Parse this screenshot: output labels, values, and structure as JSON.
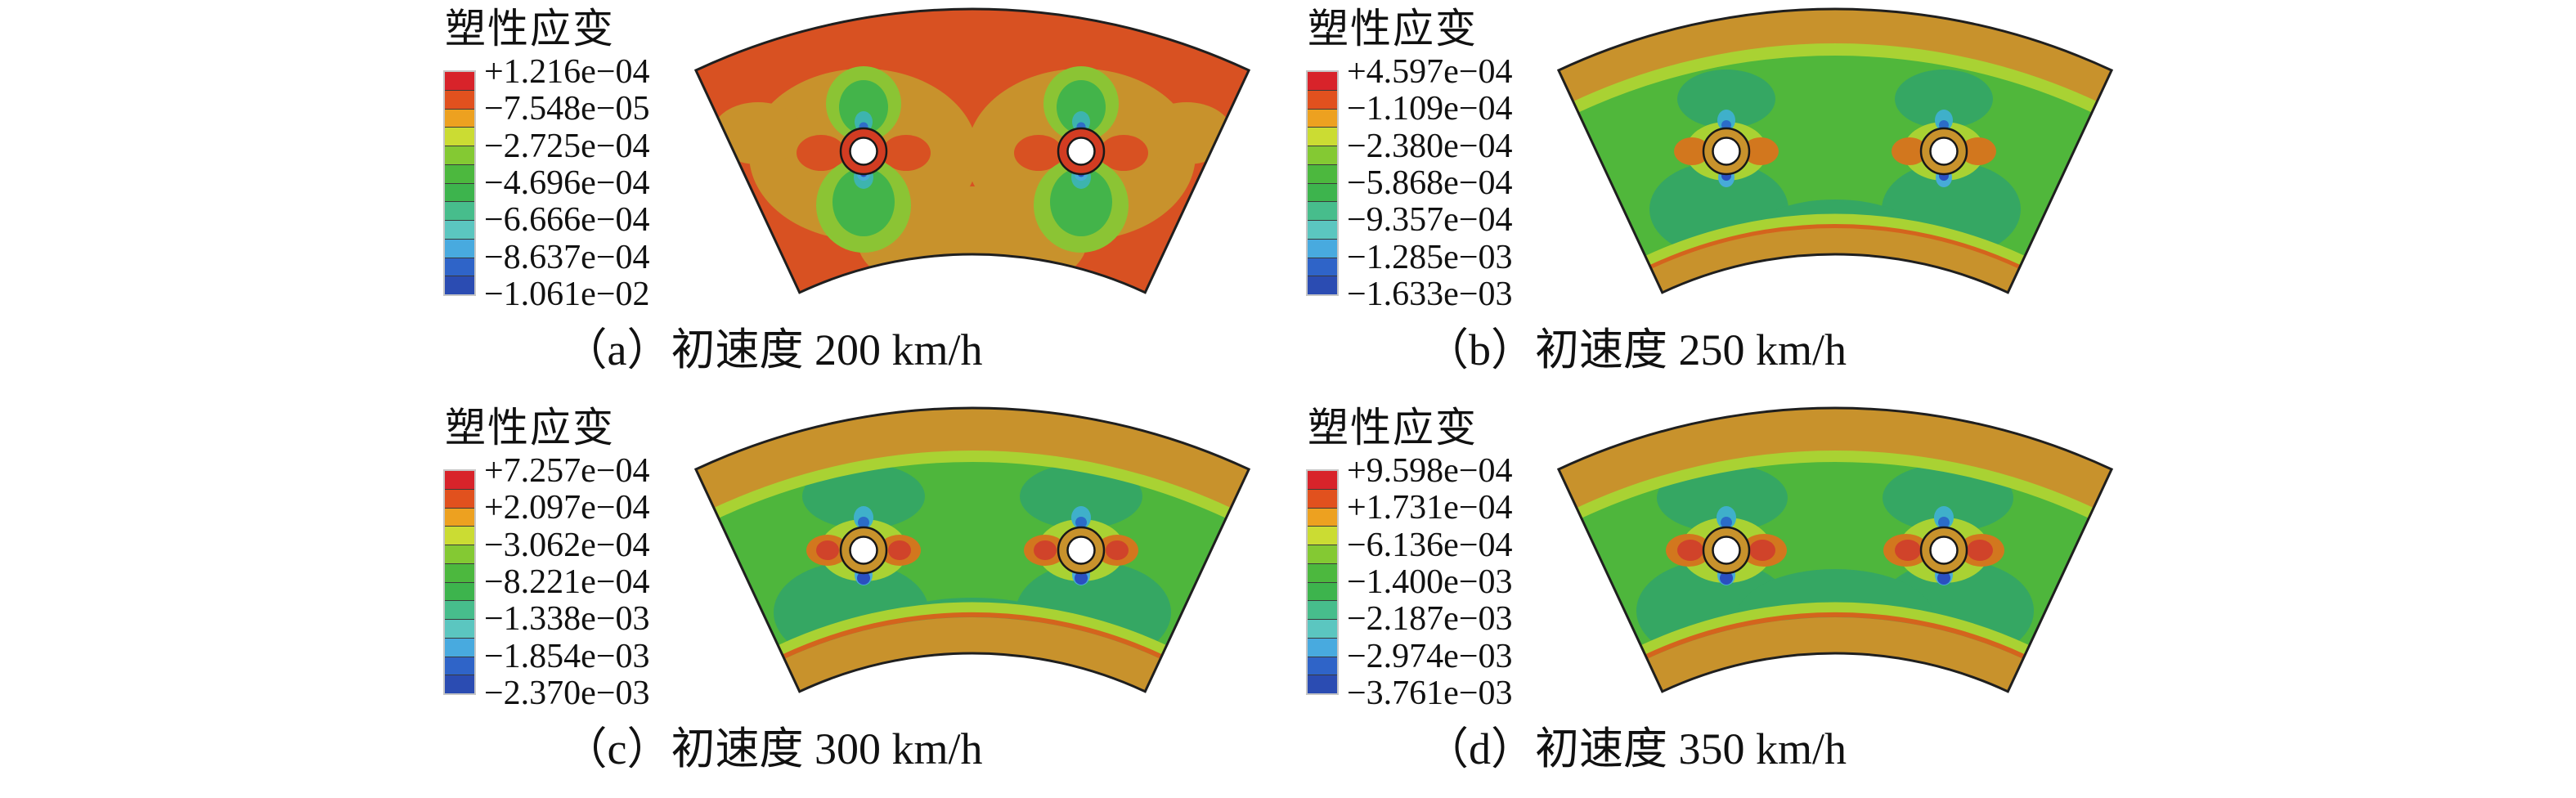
{
  "figure": {
    "background": "#ffffff",
    "colorbar_segments": 12,
    "colorbar_colors": [
      "#d8232a",
      "#e1511e",
      "#eda120",
      "#cbdc33",
      "#84c933",
      "#4cb83e",
      "#3db44d",
      "#47bd8c",
      "#5bc6c0",
      "#48aadf",
      "#2f64c8",
      "#2b4cb2"
    ],
    "subplots": [
      {
        "id": "a",
        "legend_title": "塑性应变",
        "legend_values": [
          "+1.216e−04",
          "−7.548e−05",
          "−2.725e−04",
          "−4.696e−04",
          "−6.666e−04",
          "−8.637e−04",
          "−1.061e−02"
        ],
        "caption": "（a）初速度 200 km/h"
      },
      {
        "id": "b",
        "legend_title": "塑性应变",
        "legend_values": [
          "+4.597e−04",
          "−1.109e−04",
          "−2.380e−04",
          "−5.868e−04",
          "−9.357e−04",
          "−1.285e−03",
          "−1.633e−03"
        ],
        "caption": "（b）初速度 250 km/h"
      },
      {
        "id": "c",
        "legend_title": "塑性应变",
        "legend_values": [
          "+7.257e−04",
          "+2.097e−04",
          "−3.062e−04",
          "−8.221e−04",
          "−1.338e−03",
          "−1.854e−03",
          "−2.370e−03"
        ],
        "caption": "（c）初速度 300 km/h"
      },
      {
        "id": "d",
        "legend_title": "塑性应变",
        "legend_values": [
          "+9.598e−04",
          "+1.731e−04",
          "−6.136e−04",
          "−1.400e−03",
          "−2.187e−03",
          "−2.974e−03",
          "−3.761e−03"
        ],
        "caption": "（d）初速度 350 km/h"
      }
    ]
  },
  "chart_data": [
    {
      "type": "heatmap",
      "subplot": "a",
      "title": "塑性应变",
      "caption": "（a）初速度 200 km/h",
      "initial_speed_kmh": 200,
      "legend_position": "left",
      "colorbar_segments": 12,
      "colorbar_tick_labels": [
        "+1.216e−04",
        "−7.548e−05",
        "−2.725e−04",
        "−4.696e−04",
        "−6.666e−04",
        "−8.637e−04",
        "−1.061e−02"
      ],
      "colorbar_tick_values": [
        0.0001216,
        -7.548e-05,
        -0.0002725,
        -0.0004696,
        -0.0006666,
        -0.0008637,
        -0.01061
      ],
      "colorbar_colors_top_to_bottom": [
        "#d8232a",
        "#e1511e",
        "#eda120",
        "#cbdc33",
        "#84c933",
        "#4cb83e",
        "#3db44d",
        "#47bd8c",
        "#5bc6c0",
        "#48aadf",
        "#2f64c8",
        "#2b4cb2"
      ]
    },
    {
      "type": "heatmap",
      "subplot": "b",
      "title": "塑性应变",
      "caption": "（b）初速度 250 km/h",
      "initial_speed_kmh": 250,
      "legend_position": "left",
      "colorbar_segments": 12,
      "colorbar_tick_labels": [
        "+4.597e−04",
        "−1.109e−04",
        "−2.380e−04",
        "−5.868e−04",
        "−9.357e−04",
        "−1.285e−03",
        "−1.633e−03"
      ],
      "colorbar_tick_values": [
        0.0004597,
        -0.0001109,
        -0.000238,
        -0.0005868,
        -0.0009357,
        -0.001285,
        -0.001633
      ],
      "colorbar_colors_top_to_bottom": [
        "#d8232a",
        "#e1511e",
        "#eda120",
        "#cbdc33",
        "#84c933",
        "#4cb83e",
        "#3db44d",
        "#47bd8c",
        "#5bc6c0",
        "#48aadf",
        "#2f64c8",
        "#2b4cb2"
      ]
    },
    {
      "type": "heatmap",
      "subplot": "c",
      "title": "塑性应变",
      "caption": "（c）初速度 300 km/h",
      "initial_speed_kmh": 300,
      "legend_position": "left",
      "colorbar_segments": 12,
      "colorbar_tick_labels": [
        "+7.257e−04",
        "+2.097e−04",
        "−3.062e−04",
        "−8.221e−04",
        "−1.338e−03",
        "−1.854e−03",
        "−2.370e−03"
      ],
      "colorbar_tick_values": [
        0.0007257,
        0.0002097,
        -0.0003062,
        -0.0008221,
        -0.001338,
        -0.001854,
        -0.00237
      ],
      "colorbar_colors_top_to_bottom": [
        "#d8232a",
        "#e1511e",
        "#eda120",
        "#cbdc33",
        "#84c933",
        "#4cb83e",
        "#3db44d",
        "#47bd8c",
        "#5bc6c0",
        "#48aadf",
        "#2f64c8",
        "#2b4cb2"
      ]
    },
    {
      "type": "heatmap",
      "subplot": "d",
      "title": "塑性应变",
      "caption": "（d）初速度 350 km/h",
      "initial_speed_kmh": 350,
      "legend_position": "left",
      "colorbar_segments": 12,
      "colorbar_tick_labels": [
        "+9.598e−04",
        "+1.731e−04",
        "−6.136e−04",
        "−1.400e−03",
        "−2.187e−03",
        "−2.974e−03",
        "−3.761e−03"
      ],
      "colorbar_tick_values": [
        0.0009598,
        0.0001731,
        -0.0006136,
        -0.0014,
        -0.002187,
        -0.002974,
        -0.003761
      ],
      "colorbar_colors_top_to_bottom": [
        "#d8232a",
        "#e1511e",
        "#eda120",
        "#cbdc33",
        "#84c933",
        "#4cb83e",
        "#3db44d",
        "#47bd8c",
        "#5bc6c0",
        "#48aadf",
        "#2f64c8",
        "#2b4cb2"
      ]
    }
  ]
}
